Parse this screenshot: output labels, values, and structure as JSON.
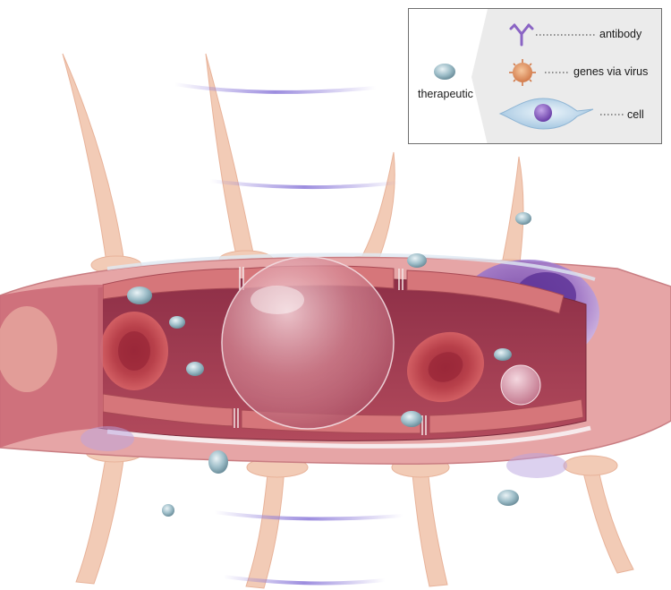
{
  "legend": {
    "source_label": "therapeutic",
    "items": [
      {
        "label": "antibody",
        "icon": "antibody-icon"
      },
      {
        "label": "genes via virus",
        "icon": "virus-icon"
      },
      {
        "label": "cell",
        "icon": "cell-icon"
      }
    ]
  },
  "colors": {
    "vessel_wall": "#d98a8d",
    "vessel_lumen": "#a73c52",
    "red_blood_cell": "#c7484e",
    "therapeutic_droplet": "#8eb2bf",
    "large_cell": "#7a4fb1",
    "wave": "#8b79d9",
    "tissue": "#f2c9b3"
  }
}
